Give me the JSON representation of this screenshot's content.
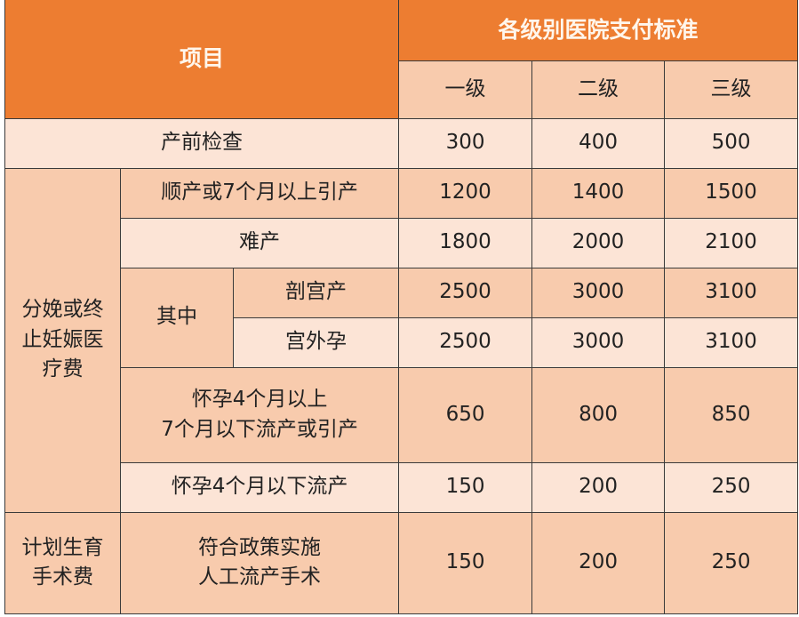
{
  "header": {
    "item": "项目",
    "standard": "各级别医院支付标准",
    "levels": [
      "一级",
      "二级",
      "三级"
    ]
  },
  "colors": {
    "header": "#ED7D31",
    "dark_row": "#F8CBAD",
    "light_row": "#FCE4D6"
  },
  "groups": {
    "delivery": "分娩或终止妊娠医疗费",
    "among": "其中",
    "family_planning": "计划生育手术费"
  },
  "rows": [
    {
      "label": "产前检查",
      "values": [
        "300",
        "400",
        "500"
      ]
    },
    {
      "label": "顺产或7个月以上引产",
      "values": [
        "1200",
        "1400",
        "1500"
      ]
    },
    {
      "label": "难产",
      "values": [
        "1800",
        "2000",
        "2100"
      ]
    },
    {
      "label": "剖宫产",
      "values": [
        "2500",
        "3000",
        "3100"
      ]
    },
    {
      "label": "宫外孕",
      "values": [
        "2500",
        "3000",
        "3100"
      ]
    },
    {
      "label": "怀孕4个月以上\n7个月以下流产或引产",
      "values": [
        "650",
        "800",
        "850"
      ]
    },
    {
      "label": "怀孕4个月以下流产",
      "values": [
        "150",
        "200",
        "250"
      ]
    },
    {
      "label": "符合政策实施\n人工流产手术",
      "values": [
        "150",
        "200",
        "250"
      ]
    }
  ]
}
